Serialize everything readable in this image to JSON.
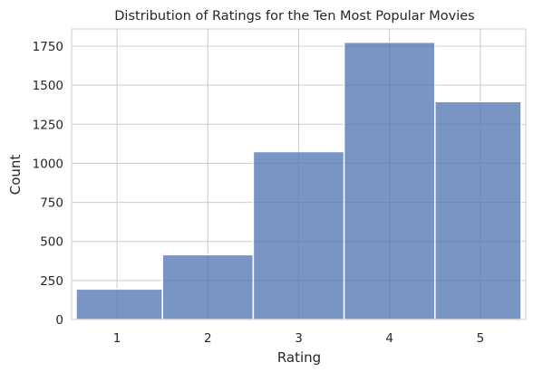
{
  "chart_data": {
    "type": "bar",
    "title": "Distribution of Ratings for the Ten Most Popular Movies",
    "xlabel": "Rating",
    "ylabel": "Count",
    "categories": [
      "1",
      "2",
      "3",
      "4",
      "5"
    ],
    "x": [
      1,
      2,
      3,
      4,
      5
    ],
    "values": [
      195,
      415,
      1075,
      1775,
      1395
    ],
    "xlim": [
      0.5,
      5.5
    ],
    "ylim": [
      0,
      1860
    ],
    "yticks": [
      0,
      250,
      500,
      750,
      1000,
      1250,
      1500,
      1750
    ],
    "ytick_labels": [
      "0",
      "250",
      "500",
      "750",
      "1000",
      "1250",
      "1500",
      "1750"
    ],
    "grid": true,
    "bar_color": "#4c72b0",
    "grid_color": "#cccccc",
    "style": "histogram"
  }
}
